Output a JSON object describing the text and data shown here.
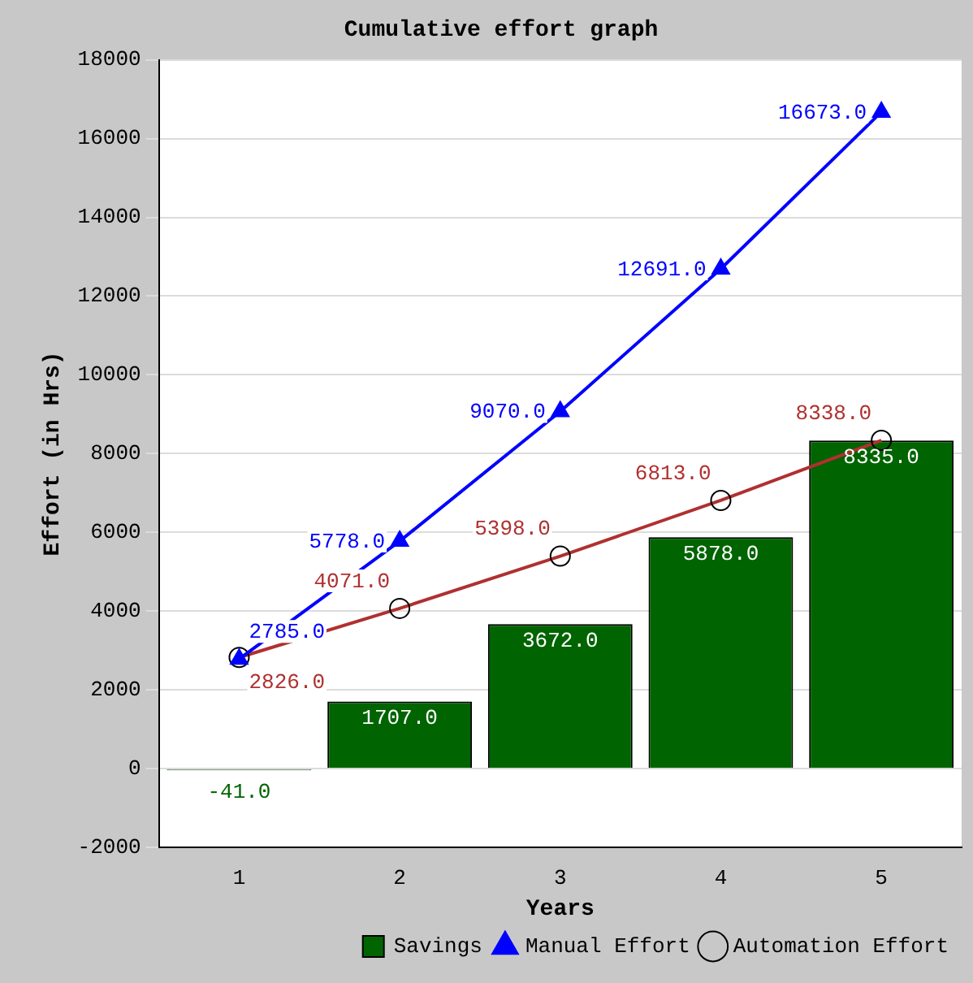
{
  "chart_data": {
    "type": "bar",
    "title": "Cumulative effort graph",
    "xlabel": "Years",
    "ylabel": "Effort (in Hrs)",
    "categories": [
      "1",
      "2",
      "3",
      "4",
      "5"
    ],
    "series": [
      {
        "name": "Savings",
        "type": "bar",
        "color": "#006400",
        "values": [
          -41,
          1707,
          3672,
          5878,
          8335
        ],
        "value_labels": [
          "-41.0",
          "1707.0",
          "3672.0",
          "5878.0",
          "8335.0"
        ]
      },
      {
        "name": "Manual Effort",
        "type": "line",
        "marker": "triangle",
        "color": "#0000ff",
        "values": [
          2785,
          5778,
          9070,
          12691,
          16673
        ],
        "value_labels": [
          "2785.0",
          "5778.0",
          "9070.0",
          "12691.0",
          "16673.0"
        ]
      },
      {
        "name": "Automation Effort",
        "type": "line",
        "marker": "circle",
        "color": "#b03030",
        "values": [
          2826,
          4071,
          5398,
          6813,
          8338
        ],
        "value_labels": [
          "2826.0",
          "4071.0",
          "5398.0",
          "6813.0",
          "8338.0"
        ]
      }
    ],
    "ylim": [
      -2000,
      18000
    ],
    "yticks": [
      -2000,
      0,
      2000,
      4000,
      6000,
      8000,
      10000,
      12000,
      14000,
      16000,
      18000
    ],
    "grid": "y",
    "legend": "bottom right"
  }
}
